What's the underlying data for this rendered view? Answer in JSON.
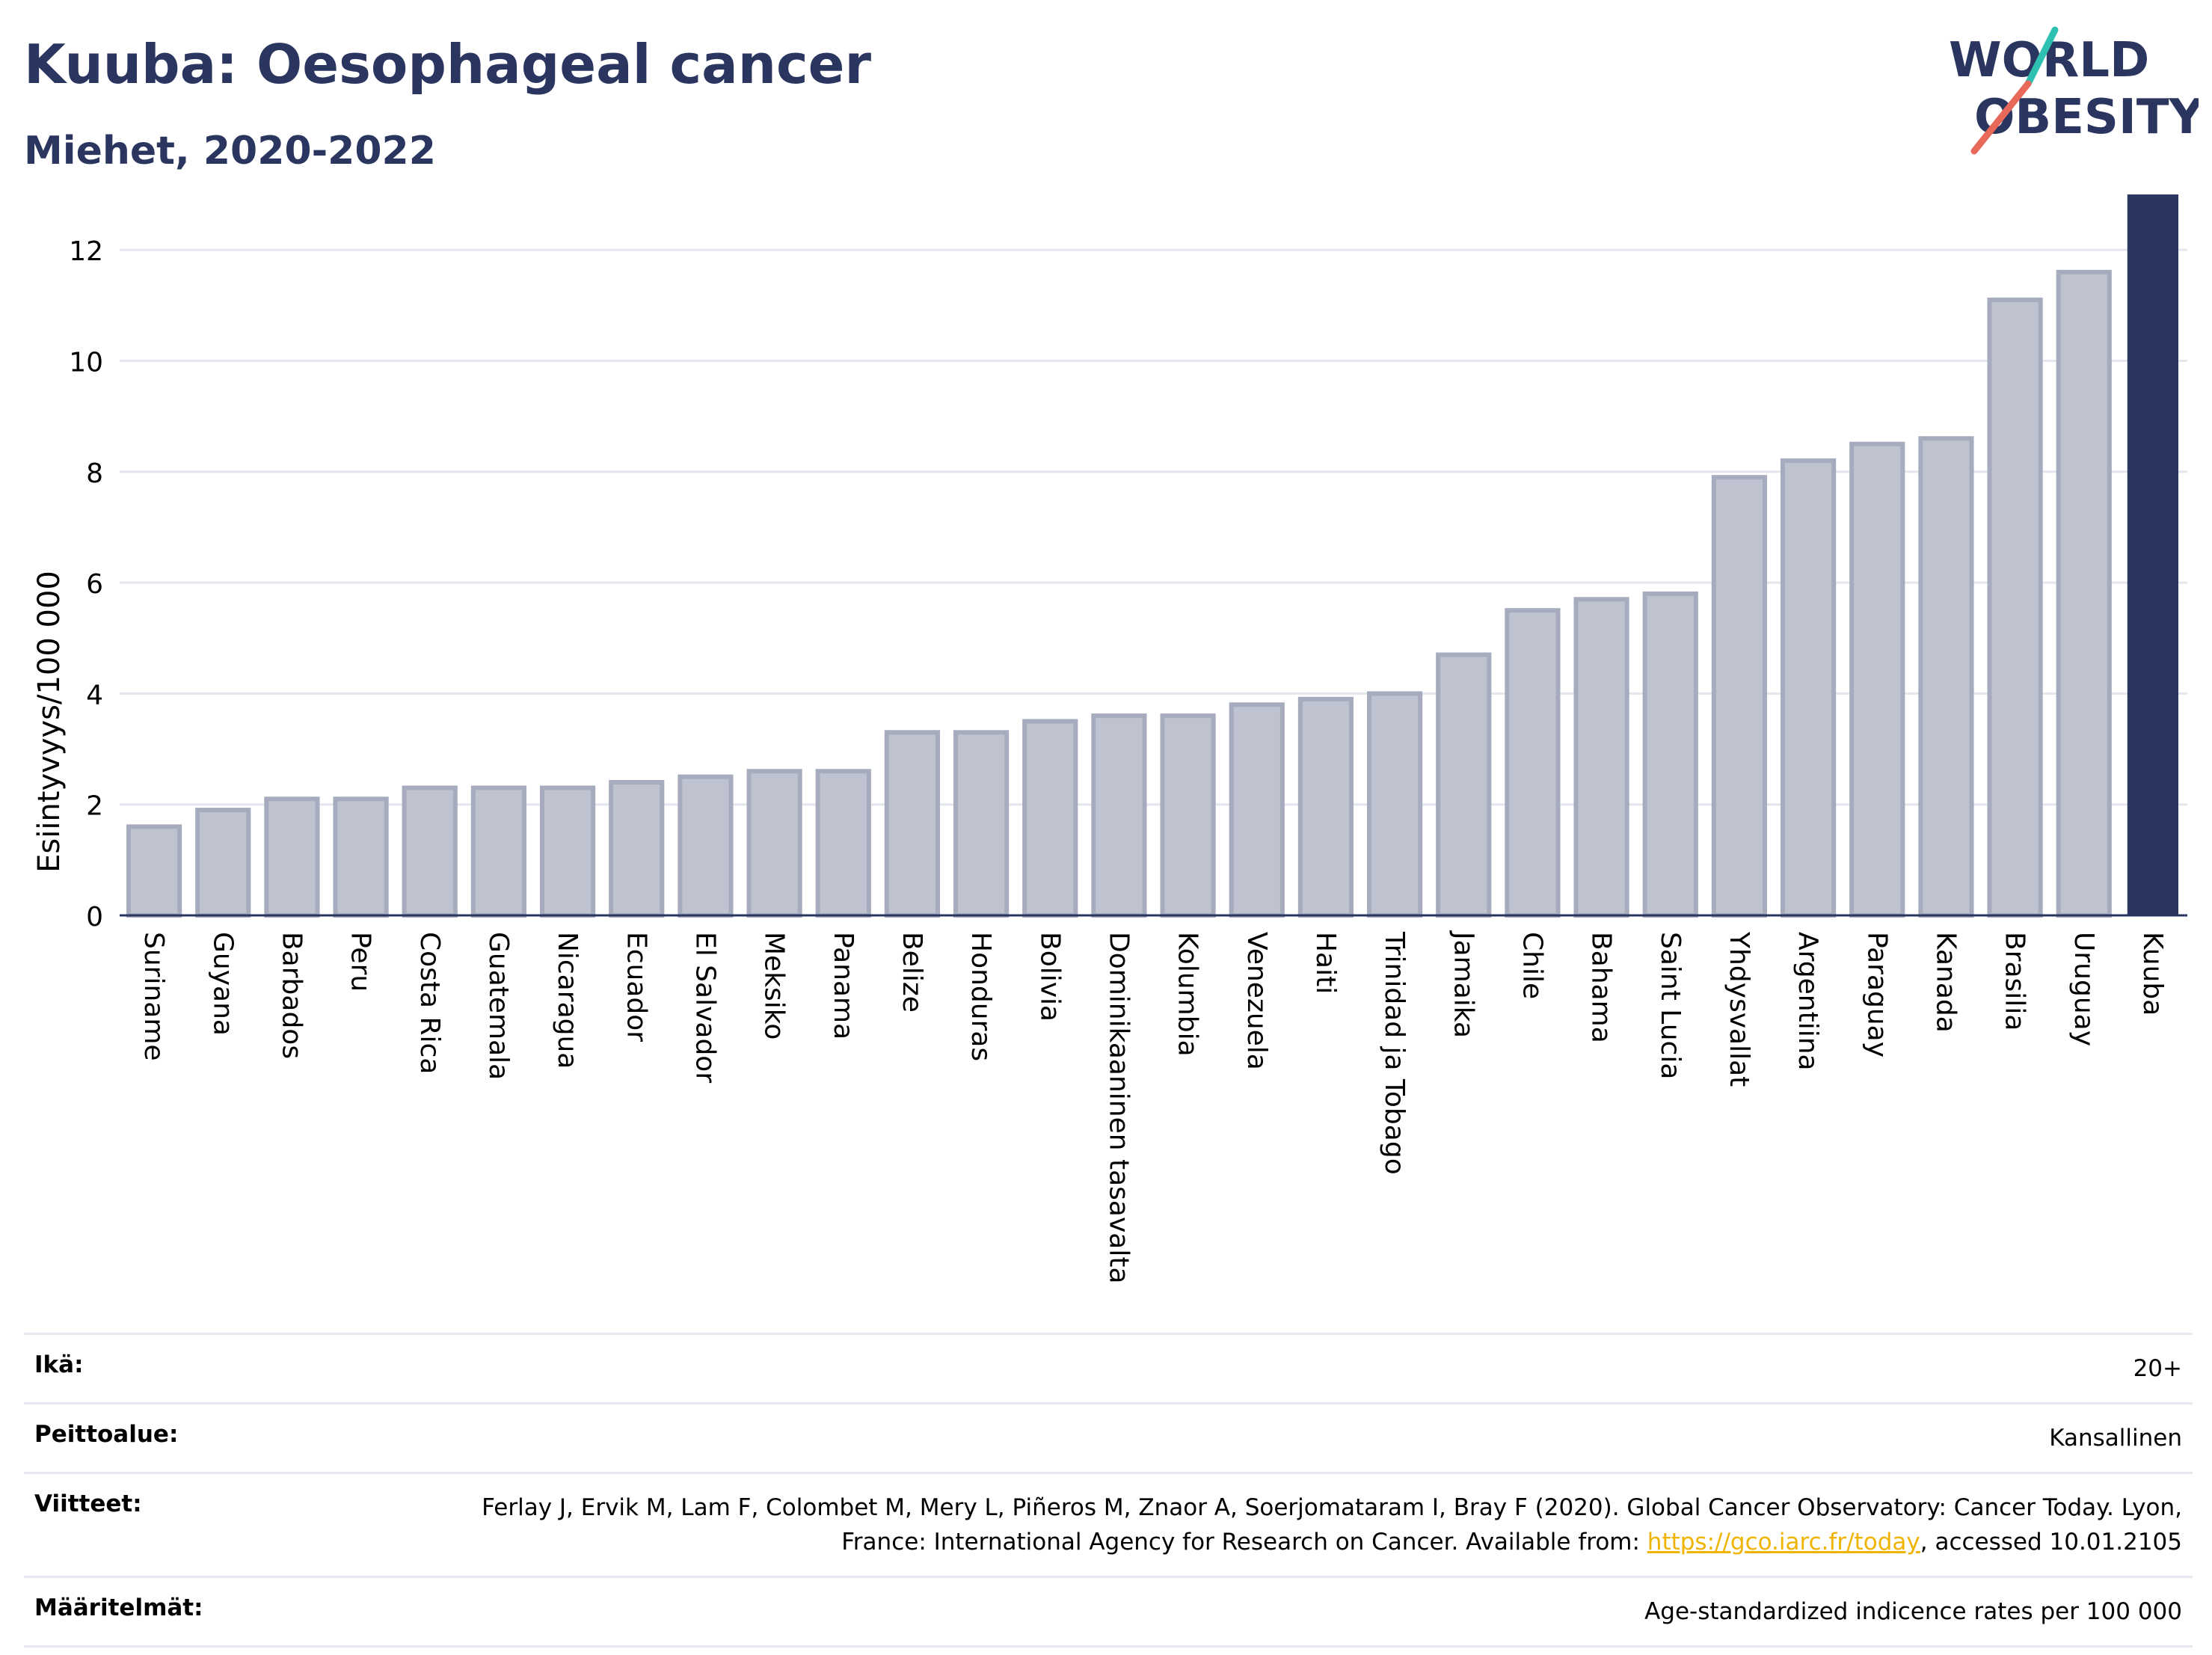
{
  "title": "Kuuba: Oesophageal cancer",
  "subtitle": "Miehet, 2020-2022",
  "logo": {
    "line1": "WORLD",
    "line2": "OBESITY",
    "accent_colors": [
      "#2dbfb0",
      "#e8685a"
    ]
  },
  "colors": {
    "bar": "#bfc3d0",
    "bar_stroke": "#a6abbe",
    "highlight": "#2a3560",
    "grid": "#e4e6ee",
    "axis": "#2a3560"
  },
  "chart_data": {
    "type": "bar",
    "ylabel": "Esiintyvyys/100 000",
    "ylim": [
      0,
      13
    ],
    "yticks": [
      0,
      2,
      4,
      6,
      8,
      10,
      12
    ],
    "grid": true,
    "highlight": "Kuuba",
    "categories": [
      "Suriname",
      "Guyana",
      "Barbados",
      "Peru",
      "Costa Rica",
      "Guatemala",
      "Nicaragua",
      "Ecuador",
      "El Salvador",
      "Meksiko",
      "Panama",
      "Belize",
      "Honduras",
      "Bolivia",
      "Dominikaaninen tasavalta",
      "Kolumbia",
      "Venezuela",
      "Haiti",
      "Trinidad ja Tobago",
      "Jamaika",
      "Chile",
      "Bahama",
      "Saint Lucia",
      "Yhdysvallat",
      "Argentiina",
      "Paraguay",
      "Kanada",
      "Brasilia",
      "Uruguay",
      "Kuuba"
    ],
    "values": [
      1.6,
      1.9,
      2.1,
      2.1,
      2.3,
      2.3,
      2.3,
      2.4,
      2.5,
      2.6,
      2.6,
      3.3,
      3.3,
      3.5,
      3.6,
      3.6,
      3.8,
      3.9,
      4.0,
      4.7,
      5.5,
      5.7,
      5.8,
      7.9,
      8.2,
      8.5,
      8.6,
      11.1,
      11.6,
      13.0
    ]
  },
  "footer": {
    "age_label": "Ikä:",
    "age_value": "20+",
    "coverage_label": "Peittoalue:",
    "coverage_value": "Kansallinen",
    "refs_label": "Viitteet:",
    "refs_text_1": "Ferlay J, Ervik M, Lam F, Colombet M, Mery L, Piñeros M, Znaor A, Soerjomataram I, Bray F (2020). Global Cancer Observatory: Cancer Today. Lyon, France: International Agency for Research on Cancer. Available from: ",
    "refs_link": "https://gco.iarc.fr/today",
    "refs_text_2": ", accessed 10.01.2105",
    "defs_label": "Määritelmät:",
    "defs_value": "Age-standardized indicence rates per 100 000"
  }
}
